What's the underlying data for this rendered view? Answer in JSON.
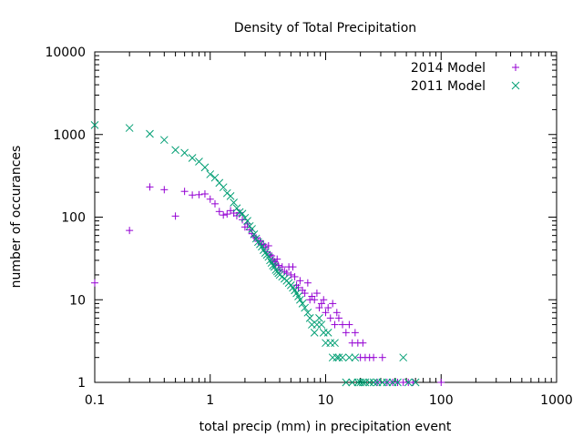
{
  "chart_data": {
    "type": "scatter",
    "title": "Density of Total Precipitation",
    "xlabel": "total precip (mm) in precipitation event",
    "ylabel": "number of occurances",
    "x_scale": "log",
    "y_scale": "log",
    "xlim": [
      0.1,
      1000
    ],
    "ylim": [
      1,
      10000
    ],
    "x_ticks": [
      "0.1",
      "1",
      "10",
      "100",
      "1000"
    ],
    "y_ticks": [
      "1",
      "10",
      "100",
      "1000",
      "10000"
    ],
    "grid": false,
    "legend_position": "top-right",
    "series": [
      {
        "name": "2014 Model",
        "color": "#9400d3",
        "marker": "plus",
        "points": [
          [
            0.1,
            16
          ],
          [
            0.2,
            69
          ],
          [
            0.3,
            232
          ],
          [
            0.4,
            215
          ],
          [
            0.5,
            103
          ],
          [
            0.6,
            205
          ],
          [
            0.7,
            185
          ],
          [
            0.8,
            187
          ],
          [
            0.9,
            191
          ],
          [
            1.0,
            165
          ],
          [
            1.1,
            145
          ],
          [
            1.2,
            117
          ],
          [
            1.3,
            106
          ],
          [
            1.4,
            109
          ],
          [
            1.5,
            120
          ],
          [
            1.6,
            112
          ],
          [
            1.7,
            104
          ],
          [
            1.8,
            113
          ],
          [
            1.9,
            93
          ],
          [
            2.0,
            76
          ],
          [
            2.1,
            83
          ],
          [
            2.2,
            70
          ],
          [
            2.3,
            63
          ],
          [
            2.4,
            58
          ],
          [
            2.5,
            56
          ],
          [
            2.6,
            51
          ],
          [
            2.7,
            52
          ],
          [
            2.8,
            46
          ],
          [
            2.9,
            47
          ],
          [
            3.0,
            43
          ],
          [
            3.1,
            38
          ],
          [
            3.2,
            45
          ],
          [
            3.3,
            35
          ],
          [
            3.4,
            34
          ],
          [
            3.5,
            30
          ],
          [
            3.6,
            29
          ],
          [
            3.7,
            27
          ],
          [
            3.8,
            31
          ],
          [
            3.9,
            26
          ],
          [
            4.0,
            23
          ],
          [
            4.2,
            25
          ],
          [
            4.4,
            22
          ],
          [
            4.6,
            21
          ],
          [
            4.8,
            25
          ],
          [
            5.0,
            20
          ],
          [
            5.2,
            25
          ],
          [
            5.4,
            19
          ],
          [
            5.6,
            15
          ],
          [
            5.8,
            14
          ],
          [
            6.0,
            17
          ],
          [
            6.3,
            13
          ],
          [
            6.6,
            12
          ],
          [
            7.0,
            16
          ],
          [
            7.3,
            10
          ],
          [
            7.6,
            11
          ],
          [
            8.0,
            10
          ],
          [
            8.4,
            12
          ],
          [
            8.8,
            8
          ],
          [
            9.2,
            9
          ],
          [
            9.6,
            10
          ],
          [
            10.0,
            7
          ],
          [
            10.5,
            8
          ],
          [
            11.0,
            6
          ],
          [
            11.5,
            9
          ],
          [
            12.0,
            5
          ],
          [
            12.5,
            7
          ],
          [
            13.0,
            6
          ],
          [
            14.0,
            5
          ],
          [
            15.0,
            4
          ],
          [
            16.0,
            5
          ],
          [
            17.0,
            3
          ],
          [
            18.0,
            4
          ],
          [
            19.0,
            3
          ],
          [
            20.0,
            2
          ],
          [
            21.0,
            3
          ],
          [
            22.0,
            2
          ],
          [
            24.0,
            2
          ],
          [
            26.0,
            2
          ],
          [
            28.0,
            1
          ],
          [
            31.0,
            2
          ],
          [
            34.0,
            1
          ],
          [
            38.0,
            1
          ],
          [
            42.0,
            1
          ],
          [
            47.0,
            1
          ],
          [
            52.0,
            1
          ],
          [
            57.0,
            1
          ],
          [
            100.0,
            1
          ]
        ]
      },
      {
        "name": "2011 Model",
        "color": "#009e73",
        "marker": "cross",
        "points": [
          [
            0.1,
            1300
          ],
          [
            0.2,
            1200
          ],
          [
            0.3,
            1020
          ],
          [
            0.4,
            860
          ],
          [
            0.5,
            650
          ],
          [
            0.6,
            600
          ],
          [
            0.7,
            520
          ],
          [
            0.8,
            470
          ],
          [
            0.9,
            400
          ],
          [
            1.0,
            330
          ],
          [
            1.1,
            300
          ],
          [
            1.2,
            260
          ],
          [
            1.3,
            230
          ],
          [
            1.4,
            195
          ],
          [
            1.5,
            180
          ],
          [
            1.6,
            150
          ],
          [
            1.7,
            128
          ],
          [
            1.8,
            115
          ],
          [
            1.9,
            110
          ],
          [
            2.0,
            98
          ],
          [
            2.1,
            90
          ],
          [
            2.2,
            78
          ],
          [
            2.3,
            72
          ],
          [
            2.4,
            62
          ],
          [
            2.5,
            55
          ],
          [
            2.6,
            50
          ],
          [
            2.7,
            47
          ],
          [
            2.8,
            44
          ],
          [
            2.9,
            40
          ],
          [
            3.0,
            37
          ],
          [
            3.1,
            35
          ],
          [
            3.2,
            33
          ],
          [
            3.3,
            30
          ],
          [
            3.4,
            28
          ],
          [
            3.5,
            26
          ],
          [
            3.6,
            25
          ],
          [
            3.7,
            23
          ],
          [
            3.8,
            22
          ],
          [
            3.9,
            21
          ],
          [
            4.0,
            20
          ],
          [
            4.2,
            19
          ],
          [
            4.4,
            18
          ],
          [
            4.6,
            17
          ],
          [
            4.8,
            16
          ],
          [
            5.0,
            15
          ],
          [
            5.2,
            14
          ],
          [
            5.4,
            13
          ],
          [
            5.6,
            12
          ],
          [
            5.8,
            11
          ],
          [
            6.0,
            10
          ],
          [
            6.3,
            9
          ],
          [
            6.6,
            8
          ],
          [
            7.0,
            7
          ],
          [
            7.3,
            6
          ],
          [
            7.6,
            5
          ],
          [
            8.0,
            4
          ],
          [
            8.4,
            5
          ],
          [
            8.8,
            6
          ],
          [
            9.2,
            5
          ],
          [
            9.6,
            4
          ],
          [
            10.0,
            3
          ],
          [
            10.5,
            4
          ],
          [
            11.0,
            3
          ],
          [
            11.5,
            2
          ],
          [
            12.0,
            3
          ],
          [
            12.5,
            2
          ],
          [
            13.0,
            2
          ],
          [
            14.0,
            2
          ],
          [
            15.0,
            1
          ],
          [
            16.0,
            2
          ],
          [
            17.0,
            1
          ],
          [
            18.0,
            2
          ],
          [
            19.0,
            1
          ],
          [
            20.0,
            1
          ],
          [
            21.0,
            1
          ],
          [
            22.0,
            1
          ],
          [
            24.0,
            1
          ],
          [
            26.0,
            1
          ],
          [
            28.0,
            1
          ],
          [
            31.0,
            1
          ],
          [
            34.0,
            1
          ],
          [
            38.0,
            1
          ],
          [
            42.0,
            1
          ],
          [
            47.0,
            2
          ],
          [
            52.0,
            1
          ],
          [
            60.0,
            1
          ]
        ]
      }
    ]
  }
}
